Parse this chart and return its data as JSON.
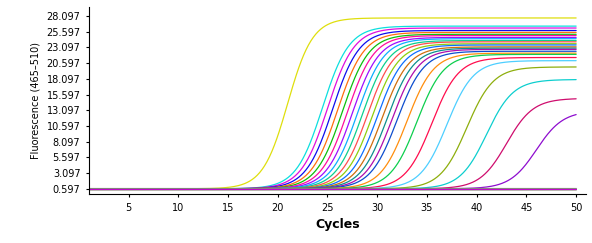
{
  "ylabel": "Fluorescence (465–510)",
  "xlabel": "Cycles",
  "yticks": [
    0.597,
    3.097,
    5.597,
    8.097,
    10.597,
    13.097,
    15.597,
    18.097,
    20.597,
    23.097,
    25.597,
    28.097
  ],
  "xticks": [
    5,
    10,
    15,
    20,
    25,
    30,
    35,
    40,
    45,
    50
  ],
  "ylim": [
    -0.3,
    29.5
  ],
  "xlim": [
    1,
    51
  ],
  "background_color": "#ffffff",
  "curves": [
    {
      "ct": 21.0,
      "ymax": 27.8,
      "color": "#dddd00",
      "lw": 0.9,
      "k": 0.8
    },
    {
      "ct": 24.5,
      "ymax": 26.5,
      "color": "#00dddd",
      "lw": 0.9,
      "k": 0.75
    },
    {
      "ct": 25.0,
      "ymax": 26.2,
      "color": "#dd00dd",
      "lw": 0.9,
      "k": 0.75
    },
    {
      "ct": 25.5,
      "ymax": 25.8,
      "color": "#0000ee",
      "lw": 0.9,
      "k": 0.75
    },
    {
      "ct": 26.0,
      "ymax": 25.5,
      "color": "#ff6600",
      "lw": 0.9,
      "k": 0.75
    },
    {
      "ct": 26.5,
      "ymax": 25.2,
      "color": "#00bb00",
      "lw": 0.9,
      "k": 0.75
    },
    {
      "ct": 27.0,
      "ymax": 25.0,
      "color": "#ff0099",
      "lw": 0.9,
      "k": 0.75
    },
    {
      "ct": 27.5,
      "ymax": 24.7,
      "color": "#9900ff",
      "lw": 0.9,
      "k": 0.75
    },
    {
      "ct": 28.0,
      "ymax": 24.5,
      "color": "#00aaff",
      "lw": 0.9,
      "k": 0.75
    },
    {
      "ct": 28.5,
      "ymax": 24.2,
      "color": "#00cc88",
      "lw": 0.9,
      "k": 0.75
    },
    {
      "ct": 29.0,
      "ymax": 24.0,
      "color": "#ff4444",
      "lw": 0.9,
      "k": 0.75
    },
    {
      "ct": 29.5,
      "ymax": 23.7,
      "color": "#88cc00",
      "lw": 0.9,
      "k": 0.75
    },
    {
      "ct": 30.0,
      "ymax": 23.5,
      "color": "#0066ff",
      "lw": 0.9,
      "k": 0.75
    },
    {
      "ct": 30.5,
      "ymax": 23.2,
      "color": "#cc6600",
      "lw": 0.9,
      "k": 0.75
    },
    {
      "ct": 31.0,
      "ymax": 23.0,
      "color": "#008888",
      "lw": 0.9,
      "k": 0.75
    },
    {
      "ct": 31.5,
      "ymax": 22.8,
      "color": "#aa00aa",
      "lw": 0.9,
      "k": 0.75
    },
    {
      "ct": 32.0,
      "ymax": 22.5,
      "color": "#0044cc",
      "lw": 0.9,
      "k": 0.75
    },
    {
      "ct": 33.0,
      "ymax": 22.2,
      "color": "#ff8800",
      "lw": 0.9,
      "k": 0.75
    },
    {
      "ct": 34.0,
      "ymax": 22.0,
      "color": "#00cc44",
      "lw": 0.9,
      "k": 0.75
    },
    {
      "ct": 35.5,
      "ymax": 21.5,
      "color": "#ff0044",
      "lw": 0.9,
      "k": 0.75
    },
    {
      "ct": 37.0,
      "ymax": 21.0,
      "color": "#44ccff",
      "lw": 0.9,
      "k": 0.75
    },
    {
      "ct": 39.0,
      "ymax": 20.0,
      "color": "#88aa00",
      "lw": 0.9,
      "k": 0.75
    },
    {
      "ct": 41.0,
      "ymax": 18.0,
      "color": "#00cccc",
      "lw": 0.9,
      "k": 0.75
    },
    {
      "ct": 43.0,
      "ymax": 15.0,
      "color": "#cc0066",
      "lw": 0.9,
      "k": 0.75
    },
    {
      "ct": 46.0,
      "ymax": 13.0,
      "color": "#8800cc",
      "lw": 0.9,
      "k": 0.75
    },
    {
      "ct": 999,
      "ymax": 2.2,
      "color": "#aaaaaa",
      "lw": 0.9,
      "k": 0.5
    },
    {
      "ct": 999,
      "ymax": 0.85,
      "color": "#888800",
      "lw": 0.8,
      "k": 0.5
    },
    {
      "ct": 999,
      "ymax": 0.9,
      "color": "#bb4400",
      "lw": 0.8,
      "k": 0.5
    },
    {
      "ct": 999,
      "ymax": 0.82,
      "color": "#004488",
      "lw": 0.8,
      "k": 0.5
    },
    {
      "ct": 999,
      "ymax": 0.78,
      "color": "#006600",
      "lw": 0.8,
      "k": 0.5
    },
    {
      "ct": 999,
      "ymax": 0.75,
      "color": "#880000",
      "lw": 0.8,
      "k": 0.5
    },
    {
      "ct": 999,
      "ymax": 0.72,
      "color": "#444444",
      "lw": 0.8,
      "k": 0.5
    },
    {
      "ct": 999,
      "ymax": 0.8,
      "color": "#008800",
      "lw": 0.8,
      "k": 0.5
    },
    {
      "ct": 999,
      "ymax": 0.76,
      "color": "#cc8800",
      "lw": 0.8,
      "k": 0.5
    },
    {
      "ct": 999,
      "ymax": 0.73,
      "color": "#0088cc",
      "lw": 0.8,
      "k": 0.5
    },
    {
      "ct": 999,
      "ymax": 0.71,
      "color": "#cc00cc",
      "lw": 0.8,
      "k": 0.5
    }
  ],
  "ylabel_fontsize": 7,
  "xlabel_fontsize": 9,
  "tick_fontsize": 7
}
